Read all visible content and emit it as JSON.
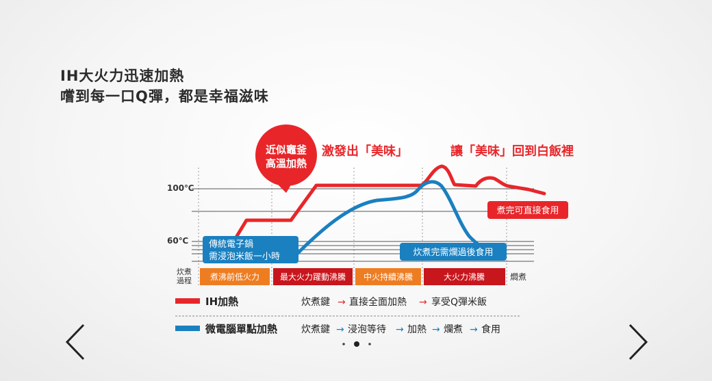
{
  "headline": {
    "line1": "IH大火力迅速加熱",
    "line2": "嚐到每一口Q彈，都是幸福滋味"
  },
  "bubble": {
    "line1": "近似竈釜",
    "line2": "高溫加熱"
  },
  "annotations": {
    "left": "激發出「美味」",
    "right": "讓「美味」回到白飯裡"
  },
  "callouts": {
    "ready": "煮完可直接食用",
    "traditional_line1": "傳統電子鍋",
    "traditional_line2": "需浸泡米飯一小時",
    "after_cook": "炊煮完需爛過後食用"
  },
  "process": {
    "label_line1": "炊煮",
    "label_line2": "過程",
    "stages": [
      "煮沸前低火力",
      "最大火力躍動沸騰",
      "中火持續沸騰",
      "大火力沸騰"
    ],
    "end_label": "燜煮"
  },
  "legend": [
    {
      "name": "IH加熱",
      "color": "#e8262a",
      "steps": [
        "炊煮鍵",
        "直接全面加熱",
        "享受Q彈米飯"
      ]
    },
    {
      "name": "微電腦單點加熱",
      "color": "#1a80c0",
      "steps": [
        "炊煮鍵",
        "浸泡等待",
        "加熱",
        "爛煮",
        "食用"
      ]
    }
  ],
  "chart_data": {
    "type": "line",
    "yticks": [
      "100℃",
      "60℃"
    ],
    "series": [
      {
        "name": "IH加熱",
        "color": "#e8262a"
      },
      {
        "name": "微電腦單點加熱",
        "color": "#1a80c0"
      }
    ]
  },
  "pagination": {
    "count": 3,
    "active": 1
  }
}
